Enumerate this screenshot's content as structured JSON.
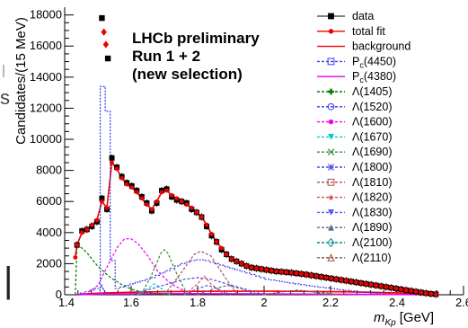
{
  "page": {
    "left_edge_glyphs": [
      "s",
      "|",
      "|"
    ]
  },
  "chart_data": {
    "type": "line",
    "title": "",
    "annotation_lines": [
      "LHCb preliminary",
      "Run 1 + 2",
      "(new selection)"
    ],
    "xlabel": "m_Kp [GeV]",
    "xlabel_main": "m",
    "xlabel_sub": "Kp",
    "xlabel_unit": "[GeV]",
    "ylabel": "Candidates/(15 MeV)",
    "xlim": [
      1.4,
      2.6
    ],
    "ylim": [
      0,
      18500
    ],
    "xticks": [
      1.4,
      1.6,
      1.8,
      2.0,
      2.2,
      2.4,
      2.6
    ],
    "xtick_labels": [
      "1.4",
      "1.6",
      "1.8",
      "2",
      "2.2",
      "2.4",
      "2.6"
    ],
    "yticks": [
      0,
      2000,
      4000,
      6000,
      8000,
      10000,
      12000,
      14000,
      16000,
      18000
    ],
    "ytick_labels": [
      "0",
      "2000",
      "4000",
      "6000",
      "8000",
      "10000",
      "12000",
      "14000",
      "16000",
      "18000"
    ],
    "annotation_markers": [
      {
        "x": 1.512,
        "y": 17800,
        "marker": "square",
        "color": "#000000"
      },
      {
        "x": 1.518,
        "y": 16900,
        "marker": "diamond",
        "color": "#ee0000"
      },
      {
        "x": 1.524,
        "y": 16100,
        "marker": "diamond",
        "color": "#ee0000"
      },
      {
        "x": 1.53,
        "y": 15200,
        "marker": "square",
        "color": "#000000"
      }
    ],
    "series": [
      {
        "name": "data",
        "color": "#000000",
        "style": "points",
        "marker": "square",
        "x": [
          1.437,
          1.452,
          1.467,
          1.482,
          1.497,
          1.512,
          1.527,
          1.542,
          1.557,
          1.572,
          1.587,
          1.602,
          1.617,
          1.632,
          1.647,
          1.662,
          1.677,
          1.692,
          1.707,
          1.722,
          1.737,
          1.752,
          1.767,
          1.782,
          1.797,
          1.812,
          1.827,
          1.842,
          1.857,
          1.872,
          1.887,
          1.902,
          1.917,
          1.932,
          1.947,
          1.962,
          1.977,
          1.992,
          2.007,
          2.022,
          2.037,
          2.052,
          2.067,
          2.082,
          2.097,
          2.112,
          2.127,
          2.142,
          2.157,
          2.172,
          2.187,
          2.202,
          2.217,
          2.232,
          2.247,
          2.262,
          2.277,
          2.292,
          2.307,
          2.322,
          2.337,
          2.352,
          2.367,
          2.382,
          2.397,
          2.412,
          2.427,
          2.442,
          2.457,
          2.472,
          2.487,
          2.502,
          2.517
        ],
        "y": [
          3200,
          4100,
          4200,
          4400,
          4700,
          6200,
          5500,
          8800,
          8200,
          7600,
          7200,
          7000,
          6700,
          6300,
          5900,
          5400,
          5900,
          6700,
          6800,
          6300,
          6100,
          6000,
          5900,
          5500,
          5300,
          5000,
          4400,
          3800,
          3400,
          2900,
          2600,
          2300,
          2150,
          2000,
          1850,
          1750,
          1700,
          1650,
          1600,
          1550,
          1500,
          1480,
          1450,
          1420,
          1380,
          1340,
          1300,
          1250,
          1200,
          1150,
          1100,
          1050,
          1000,
          950,
          900,
          850,
          800,
          750,
          700,
          650,
          600,
          550,
          500,
          450,
          400,
          350,
          300,
          250,
          200,
          150,
          100,
          60,
          30
        ]
      },
      {
        "name": "total fit",
        "color": "#ee0000",
        "style": "line-points",
        "marker": "circle",
        "x": [
          1.432,
          1.437,
          1.452,
          1.467,
          1.482,
          1.497,
          1.512,
          1.527,
          1.542,
          1.557,
          1.572,
          1.587,
          1.602,
          1.617,
          1.632,
          1.647,
          1.662,
          1.677,
          1.692,
          1.707,
          1.722,
          1.737,
          1.752,
          1.767,
          1.782,
          1.797,
          1.812,
          1.827,
          1.842,
          1.857,
          1.872,
          1.887,
          1.902,
          1.917,
          1.932,
          1.947,
          1.962,
          1.977,
          1.992,
          2.007,
          2.022,
          2.037,
          2.052,
          2.067,
          2.082,
          2.097,
          2.112,
          2.127,
          2.142,
          2.157,
          2.172,
          2.187,
          2.202,
          2.217,
          2.232,
          2.247,
          2.262,
          2.277,
          2.292,
          2.307,
          2.322,
          2.337,
          2.352,
          2.367,
          2.382,
          2.397,
          2.412,
          2.427,
          2.442,
          2.457,
          2.472,
          2.487,
          2.502,
          2.517
        ],
        "y": [
          2400,
          3200,
          4000,
          4200,
          4500,
          4800,
          6000,
          5600,
          8500,
          8100,
          7500,
          7100,
          6900,
          6600,
          6200,
          5800,
          5500,
          6000,
          6600,
          6700,
          6400,
          6200,
          6000,
          5800,
          5600,
          5300,
          5000,
          4500,
          3900,
          3400,
          3000,
          2600,
          2300,
          2150,
          2000,
          1850,
          1750,
          1700,
          1650,
          1600,
          1550,
          1500,
          1480,
          1450,
          1420,
          1380,
          1340,
          1300,
          1250,
          1200,
          1150,
          1100,
          1050,
          1000,
          950,
          900,
          850,
          800,
          750,
          700,
          650,
          600,
          550,
          500,
          450,
          400,
          350,
          300,
          250,
          200,
          150,
          100,
          60,
          30
        ]
      },
      {
        "name": "background",
        "color": "#ee0000",
        "style": "line",
        "x": [
          1.432,
          1.45,
          1.5,
          1.6,
          1.7,
          1.8,
          1.9,
          2.0,
          2.1,
          2.2,
          2.3,
          2.4,
          2.45,
          2.5,
          2.52
        ],
        "y": [
          0,
          40,
          100,
          160,
          200,
          220,
          230,
          230,
          220,
          200,
          170,
          120,
          80,
          30,
          0
        ]
      },
      {
        "name": "P_c(4450)",
        "legend_main": "P",
        "legend_sub": "c",
        "legend_tail": "(4450)",
        "color": "#3a3aee",
        "style": "hist",
        "marker": "open-square",
        "x": [
          1.432,
          1.447,
          1.462,
          1.477,
          1.492,
          1.507,
          1.522,
          1.537,
          1.552,
          1.567,
          1.582,
          1.597,
          1.612,
          1.627,
          1.642,
          1.657,
          1.672,
          1.687,
          1.702,
          1.717,
          1.732,
          1.747,
          1.762,
          1.777,
          1.792,
          1.807,
          1.822,
          1.837,
          1.852,
          1.867,
          1.882,
          1.897,
          1.912,
          1.927,
          1.942,
          1.957,
          1.972,
          1.987,
          2.002,
          2.017,
          2.032,
          2.047,
          2.062,
          2.077,
          2.092,
          2.107,
          2.122,
          2.137,
          2.152,
          2.167,
          2.182,
          2.197,
          2.212,
          2.227,
          2.242,
          2.257,
          2.272,
          2.287,
          2.302,
          2.317,
          2.332,
          2.347,
          2.362,
          2.377,
          2.392,
          2.407,
          2.422,
          2.437,
          2.452,
          2.467,
          2.482,
          2.497,
          2.512
        ],
        "y": [
          0,
          100,
          200,
          300,
          400,
          13400,
          11800,
          2200,
          400,
          500,
          600,
          700,
          800,
          900,
          1000,
          1100,
          1250,
          1400,
          1550,
          1700,
          1850,
          2000,
          2100,
          2200,
          2250,
          2250,
          2200,
          2100,
          2000,
          1900,
          1800,
          1700,
          1600,
          1500,
          1400,
          1300,
          1200,
          1100,
          1000,
          950,
          900,
          850,
          800,
          750,
          700,
          650,
          600,
          560,
          520,
          480,
          440,
          400,
          360,
          320,
          280,
          240,
          200,
          170,
          140,
          110,
          90,
          70,
          50,
          40,
          30,
          20,
          15,
          10,
          5,
          0,
          0,
          0,
          0
        ]
      },
      {
        "name": "P_c(4380)",
        "legend_main": "P",
        "legend_sub": "c",
        "legend_tail": "(4380)",
        "color": "#ee00ee",
        "style": "line",
        "x": [
          1.432,
          1.46,
          1.5,
          1.6,
          1.7,
          1.8,
          1.9,
          2.0,
          2.1,
          2.2,
          2.3,
          2.4,
          2.5
        ],
        "y": [
          0,
          20,
          40,
          60,
          70,
          70,
          65,
          55,
          45,
          35,
          25,
          15,
          5
        ]
      },
      {
        "name": "Λ(1405)",
        "color": "#007a00",
        "style": "dashed",
        "marker": "plus",
        "x": [
          1.432,
          1.437,
          1.452,
          1.467,
          1.482,
          1.497,
          1.512,
          1.527,
          1.542,
          1.557,
          1.572,
          1.587,
          1.602,
          1.62,
          1.64,
          1.66,
          1.68,
          1.7,
          1.72
        ],
        "y": [
          0,
          3200,
          3000,
          2700,
          2300,
          1900,
          1600,
          1300,
          1050,
          850,
          650,
          500,
          350,
          250,
          170,
          110,
          70,
          40,
          0
        ]
      },
      {
        "name": "Λ(1520)",
        "color": "#3a3aee",
        "style": "dashed",
        "marker": "open-circle",
        "x": [
          1.495,
          1.505,
          1.512,
          1.519,
          1.53
        ],
        "y": [
          0,
          200,
          600,
          200,
          0
        ]
      },
      {
        "name": "Λ(1600)",
        "color": "#ee00ee",
        "style": "dashed",
        "marker": "circle",
        "x": [
          1.46,
          1.5,
          1.53,
          1.56,
          1.58,
          1.6,
          1.62,
          1.65,
          1.68,
          1.72,
          1.76,
          1.8
        ],
        "y": [
          0,
          600,
          1900,
          3100,
          3600,
          3600,
          3300,
          2500,
          1500,
          700,
          250,
          0
        ]
      },
      {
        "name": "Λ(1670)",
        "color": "#00cccc",
        "style": "dashed",
        "marker": "triangle-down",
        "x": [
          1.62,
          1.65,
          1.67,
          1.69,
          1.72
        ],
        "y": [
          0,
          400,
          700,
          400,
          0
        ]
      },
      {
        "name": "Λ(1690)",
        "color": "#3a8a3a",
        "style": "dashed",
        "marker": "cross",
        "x": [
          1.63,
          1.66,
          1.69,
          1.7,
          1.71,
          1.74,
          1.77
        ],
        "y": [
          0,
          1200,
          2700,
          2900,
          2700,
          1200,
          0
        ]
      },
      {
        "name": "Λ(1800)",
        "color": "#4a4aee",
        "style": "dashed",
        "marker": "asterisk",
        "x": [
          1.6,
          1.68,
          1.76,
          1.8,
          1.84,
          1.92,
          2.0
        ],
        "y": [
          0,
          500,
          1000,
          1100,
          1000,
          500,
          0
        ]
      },
      {
        "name": "Λ(1810)",
        "color": "#b05050",
        "style": "dashed",
        "marker": "open-square",
        "x": [
          1.7,
          1.75,
          1.79,
          1.81,
          1.84,
          1.88,
          1.92
        ],
        "y": [
          0,
          1400,
          2600,
          2800,
          2500,
          1200,
          0
        ]
      },
      {
        "name": "Λ(1820)",
        "color": "#dd5050",
        "style": "dashed",
        "marker": "star",
        "x": [
          1.76,
          1.8,
          1.82,
          1.84,
          1.88
        ],
        "y": [
          0,
          700,
          1200,
          700,
          0
        ]
      },
      {
        "name": "Λ(1830)",
        "color": "#5a5aee",
        "style": "dashed",
        "marker": "triangle-down",
        "x": [
          1.76,
          1.8,
          1.83,
          1.86,
          1.9
        ],
        "y": [
          0,
          400,
          600,
          400,
          0
        ]
      },
      {
        "name": "Λ(1890)",
        "color": "#5a6a8a",
        "style": "dashed",
        "marker": "triangle",
        "x": [
          1.8,
          1.85,
          1.89,
          1.93,
          1.98
        ],
        "y": [
          0,
          400,
          600,
          400,
          0
        ]
      },
      {
        "name": "Λ(2100)",
        "color": "#008a8a",
        "style": "dashed",
        "marker": "open-diamond",
        "x": [
          2.0,
          2.06,
          2.1,
          2.14,
          2.2
        ],
        "y": [
          0,
          200,
          300,
          200,
          0
        ]
      },
      {
        "name": "Λ(2110)",
        "color": "#8a5a3a",
        "style": "dashed",
        "marker": "open-triangle",
        "x": [
          2.0,
          2.06,
          2.11,
          2.16,
          2.22
        ],
        "y": [
          0,
          200,
          250,
          200,
          0
        ]
      }
    ]
  }
}
